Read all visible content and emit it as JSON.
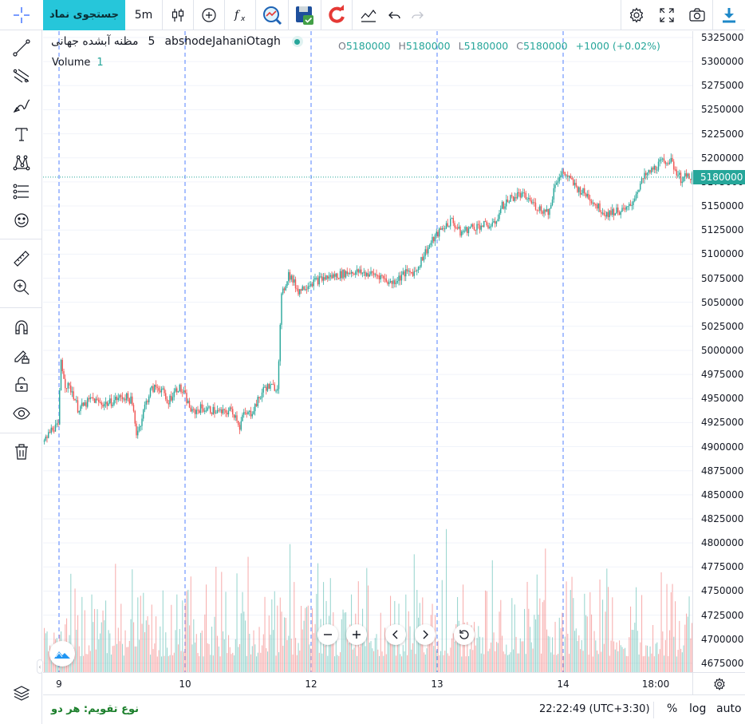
{
  "toolbar": {
    "symbol_search_label": "جستجوی نماد",
    "interval_label": "5m",
    "icons": [
      "crosshair-icon",
      "bars-style-icon",
      "add-compare-icon",
      "indicators-icon",
      "replay-icon",
      "save-icon",
      "refresh-icon",
      "compare-chart-icon",
      "undo-icon",
      "redo-icon",
      "settings-icon",
      "fullscreen-icon",
      "camera-icon",
      "download-icon"
    ]
  },
  "left_tools": [
    "trend-line-icon",
    "fib-icon",
    "brush-icon",
    "text-icon",
    "pattern-icon",
    "prediction-icon",
    "emoji-icon",
    "ruler-icon",
    "zoom-icon",
    "magnet-icon",
    "lock-drawing-icon",
    "lock-icon",
    "eye-icon",
    "trash-icon"
  ],
  "legend": {
    "symbol_name": "مظنه آبشده جهانی",
    "interval": "5",
    "ticker": "abshodeJahaniOtagh",
    "o_label": "O",
    "o_value": "5180000",
    "h_label": "H",
    "h_value": "5180000",
    "l_label": "L",
    "l_value": "5180000",
    "c_label": "C",
    "c_value": "5180000",
    "change": "+1000 (+0.02%)",
    "volume_label": "Volume",
    "volume_value": "1"
  },
  "price_axis": {
    "ticks": [
      "5325000",
      "5300000",
      "5275000",
      "5250000",
      "5225000",
      "5200000",
      "5175000",
      "5150000",
      "5125000",
      "5100000",
      "5075000",
      "5050000",
      "5025000",
      "5000000",
      "4975000",
      "4950000",
      "4925000",
      "4900000",
      "4875000",
      "4850000",
      "4825000",
      "4800000",
      "4775000",
      "4750000",
      "4725000",
      "4700000",
      "4675000"
    ],
    "last_price": "5180000"
  },
  "time_axis": {
    "ticks": [
      "9",
      "10",
      "12",
      "13",
      "14",
      "18:00"
    ]
  },
  "status": {
    "calendar_label": "نوع تقویم: هر دو",
    "clock": "22:22:49 (UTC+3:30)",
    "percent_label": "%",
    "log_label": "log",
    "auto_label": "auto"
  },
  "colors": {
    "up": "#26a69a",
    "down": "#ef5350",
    "accent": "#26c6da",
    "session_line": "#2962ff"
  },
  "chart_data": {
    "type": "candlestick",
    "price_range": [
      4665000,
      5335000
    ],
    "last_price": 5180000,
    "sessions": [
      "9",
      "10",
      "12",
      "13",
      "14"
    ],
    "path": [
      [
        0,
        4905000
      ],
      [
        6,
        4920000
      ],
      [
        10,
        4920000
      ],
      [
        12,
        4990000
      ],
      [
        15,
        4965000
      ],
      [
        20,
        4958000
      ],
      [
        24,
        4940000
      ],
      [
        28,
        4942000
      ],
      [
        34,
        4950000
      ],
      [
        40,
        4945000
      ],
      [
        46,
        4945000
      ],
      [
        52,
        4950000
      ],
      [
        58,
        4952000
      ],
      [
        62,
        4948000
      ],
      [
        64,
        4935000
      ],
      [
        66,
        4915000
      ],
      [
        68,
        4920000
      ],
      [
        72,
        4942000
      ],
      [
        76,
        4958000
      ],
      [
        80,
        4962000
      ],
      [
        84,
        4960000
      ],
      [
        88,
        4945000
      ],
      [
        92,
        4955000
      ],
      [
        96,
        4962000
      ],
      [
        100,
        4955000
      ],
      [
        106,
        4935000
      ],
      [
        112,
        4940000
      ],
      [
        120,
        4938000
      ],
      [
        128,
        4935000
      ],
      [
        134,
        4938000
      ],
      [
        138,
        4930000
      ],
      [
        140,
        4920000
      ],
      [
        142,
        4932000
      ],
      [
        148,
        4935000
      ],
      [
        154,
        4950000
      ],
      [
        158,
        4962000
      ],
      [
        164,
        4962000
      ],
      [
        167,
        4962000
      ],
      [
        170,
        5055000
      ],
      [
        175,
        5080000
      ],
      [
        182,
        5062000
      ],
      [
        190,
        5070000
      ],
      [
        200,
        5075000
      ],
      [
        210,
        5078000
      ],
      [
        220,
        5082000
      ],
      [
        230,
        5080000
      ],
      [
        240,
        5078000
      ],
      [
        248,
        5070000
      ],
      [
        252,
        5073000
      ],
      [
        258,
        5080000
      ],
      [
        266,
        5082000
      ],
      [
        272,
        5100000
      ],
      [
        280,
        5118000
      ],
      [
        286,
        5128000
      ],
      [
        292,
        5135000
      ],
      [
        298,
        5122000
      ],
      [
        306,
        5128000
      ],
      [
        314,
        5130000
      ],
      [
        322,
        5130000
      ],
      [
        328,
        5150000
      ],
      [
        334,
        5158000
      ],
      [
        340,
        5162000
      ],
      [
        346,
        5158000
      ],
      [
        352,
        5150000
      ],
      [
        358,
        5145000
      ],
      [
        362,
        5145000
      ],
      [
        366,
        5175000
      ],
      [
        372,
        5185000
      ],
      [
        376,
        5178000
      ],
      [
        382,
        5168000
      ],
      [
        390,
        5160000
      ],
      [
        396,
        5150000
      ],
      [
        402,
        5142000
      ],
      [
        410,
        5145000
      ],
      [
        416,
        5145000
      ],
      [
        420,
        5150000
      ],
      [
        426,
        5170000
      ],
      [
        430,
        5180000
      ],
      [
        436,
        5188000
      ],
      [
        442,
        5195000
      ],
      [
        448,
        5198000
      ],
      [
        452,
        5188000
      ],
      [
        456,
        5178000
      ],
      [
        460,
        5180000
      ],
      [
        464,
        5182000
      ]
    ],
    "volume": {
      "label": "Volume",
      "last": 1
    }
  }
}
